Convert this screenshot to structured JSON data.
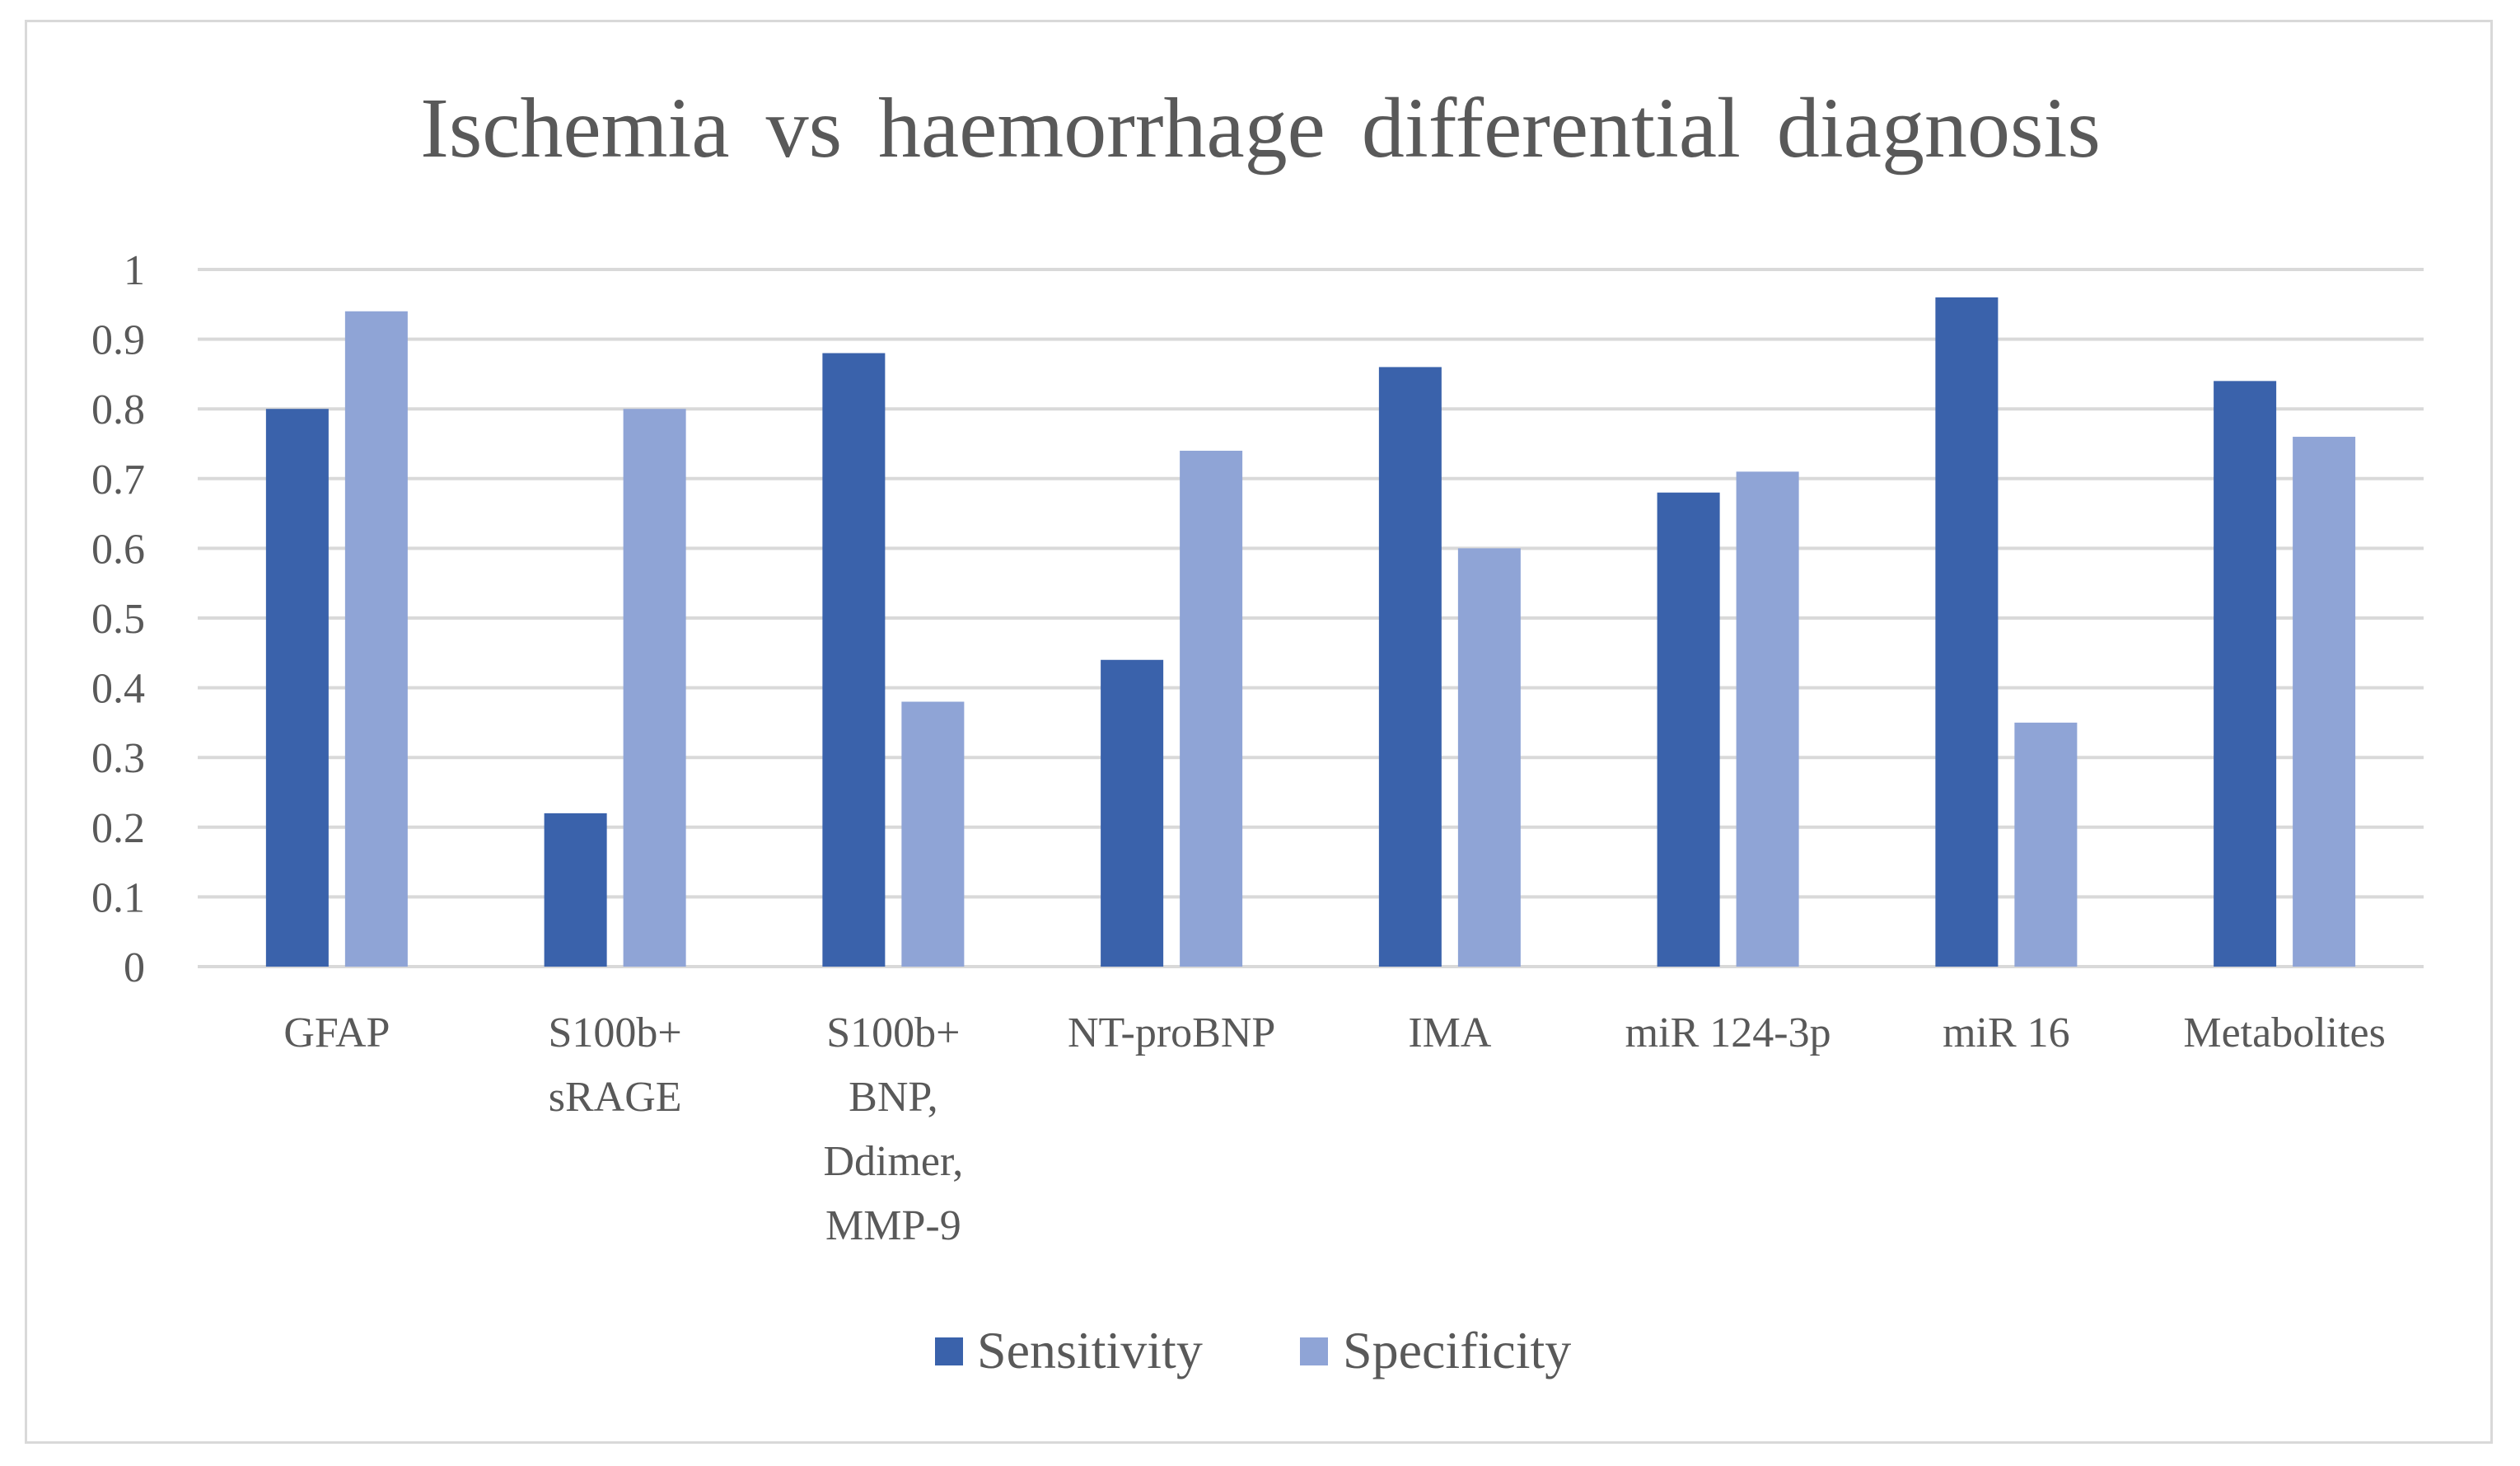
{
  "chart_data": {
    "type": "bar",
    "title": "Ischemia vs haemorrhage differential diagnosis",
    "categories": [
      [
        "GFAP"
      ],
      [
        "S100b+",
        "sRAGE"
      ],
      [
        "S100b+",
        "BNP,",
        "Ddimer,",
        "MMP-9"
      ],
      [
        "NT-proBNP"
      ],
      [
        "IMA"
      ],
      [
        "miR 124-3p"
      ],
      [
        "miR 16"
      ],
      [
        "Metabolites"
      ]
    ],
    "series": [
      {
        "name": "Sensitivity",
        "color": "#3a62ab",
        "values": [
          0.8,
          0.22,
          0.88,
          0.44,
          0.86,
          0.68,
          0.96,
          0.84
        ]
      },
      {
        "name": "Specificity",
        "color": "#8fa4d6",
        "values": [
          0.94,
          0.8,
          0.38,
          0.74,
          0.6,
          0.71,
          0.35,
          0.76
        ]
      }
    ],
    "ylim": [
      0,
      1
    ],
    "yticks": [
      "0",
      "0.1",
      "0.2",
      "0.3",
      "0.4",
      "0.5",
      "0.6",
      "0.7",
      "0.8",
      "0.9",
      "1"
    ],
    "xlabel": "",
    "ylabel": "",
    "grid": true,
    "legend": "bottom",
    "gridColor": "#d9d9d9"
  }
}
